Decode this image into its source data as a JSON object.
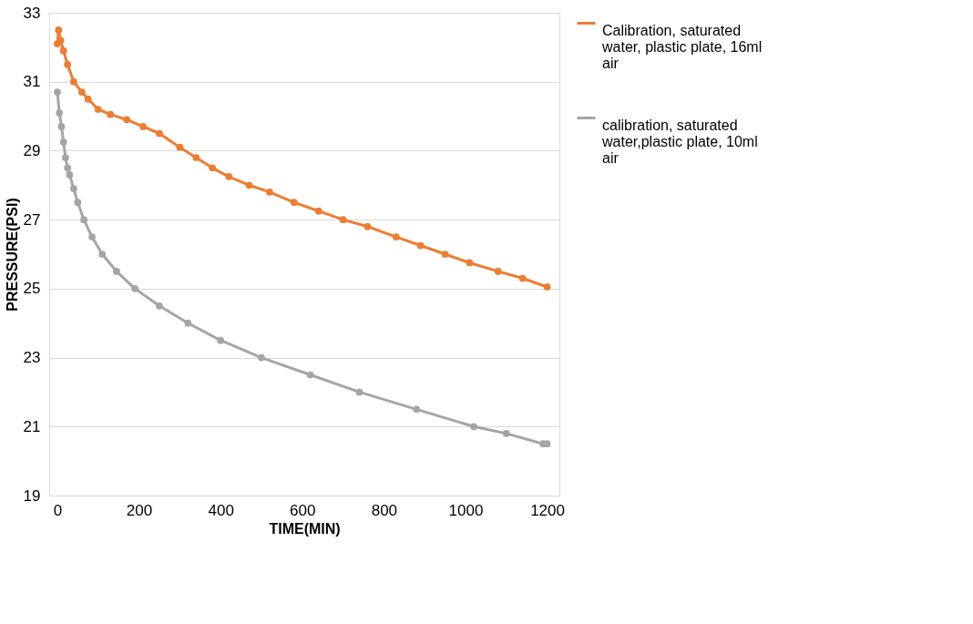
{
  "chart_data": {
    "type": "line",
    "xlabel": "TIME(MIN)",
    "ylabel": "PRESSURE(PSI)",
    "xlim": [
      -20,
      1230
    ],
    "xticks": [
      0,
      200,
      400,
      600,
      800,
      1000,
      1200
    ],
    "ylim": [
      19,
      33
    ],
    "yticks": [
      19,
      21,
      23,
      25,
      27,
      29,
      31,
      33
    ],
    "grid": "y",
    "legend": "right",
    "marker": "circle",
    "line_style": "solid",
    "series": [
      {
        "name": "Calibration, saturated water, plastic plate, 16ml air",
        "color": "#ed7d31",
        "x": [
          0,
          3,
          8,
          15,
          25,
          40,
          60,
          75,
          100,
          130,
          170,
          210,
          250,
          300,
          340,
          380,
          420,
          470,
          520,
          580,
          640,
          700,
          760,
          830,
          890,
          950,
          1010,
          1080,
          1140,
          1200
        ],
        "values": [
          32.1,
          32.5,
          32.2,
          31.9,
          31.5,
          31.0,
          30.7,
          30.5,
          30.2,
          30.05,
          29.9,
          29.7,
          29.5,
          29.1,
          28.8,
          28.5,
          28.25,
          28.0,
          27.8,
          27.5,
          27.25,
          27.0,
          26.8,
          26.5,
          26.25,
          26.0,
          25.75,
          25.5,
          25.3,
          25.05
        ]
      },
      {
        "name": "calibration, saturated water,plastic plate, 10ml air",
        "color": "#a5a5a5",
        "x": [
          0,
          5,
          10,
          15,
          20,
          25,
          30,
          40,
          50,
          65,
          85,
          110,
          145,
          190,
          250,
          320,
          400,
          500,
          620,
          740,
          880,
          1020,
          1100,
          1190,
          1200
        ],
        "values": [
          30.7,
          30.1,
          29.7,
          29.25,
          28.8,
          28.5,
          28.3,
          27.9,
          27.5,
          27.0,
          26.5,
          26.0,
          25.5,
          25.0,
          24.5,
          24.0,
          23.5,
          23.0,
          22.5,
          22.0,
          21.5,
          21.0,
          20.8,
          20.5,
          20.5
        ]
      }
    ]
  }
}
